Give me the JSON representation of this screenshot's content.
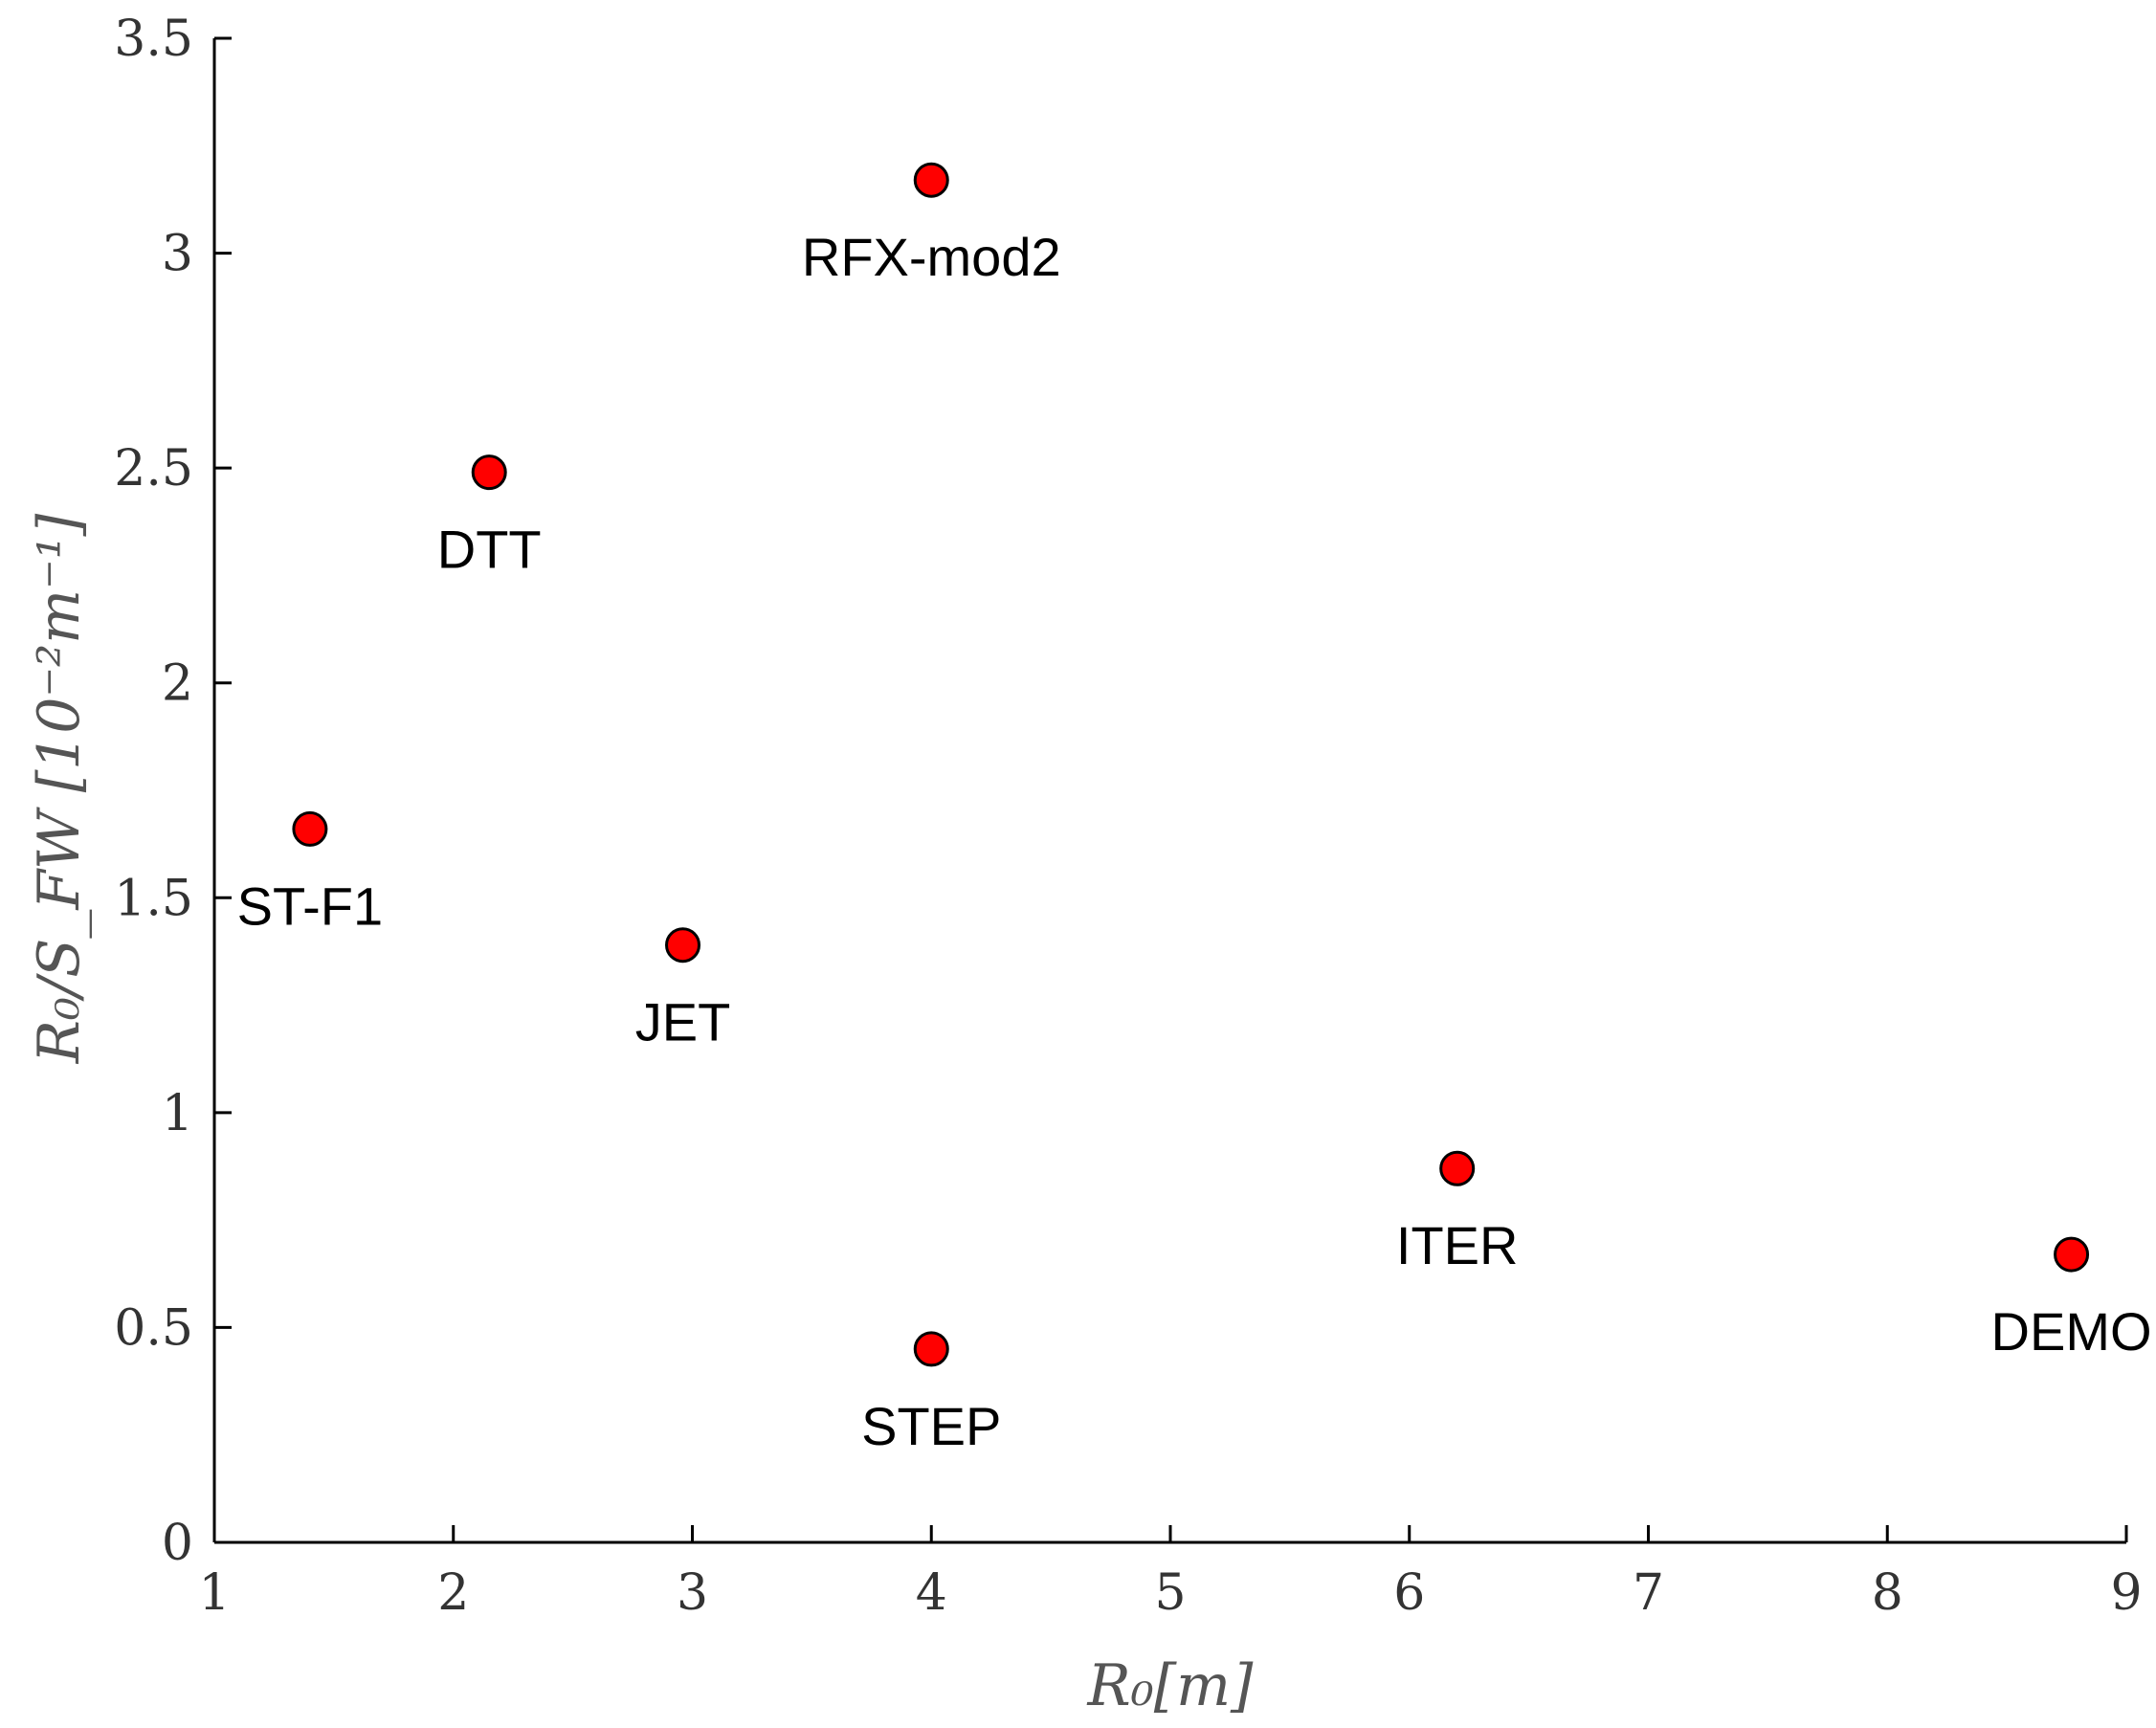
{
  "chart_data": {
    "type": "scatter",
    "title": "",
    "xlabel": "R₀[m]",
    "ylabel": "R₀/S_FW [10⁻²m⁻¹]",
    "xlim": [
      1,
      9
    ],
    "ylim": [
      0,
      3.5
    ],
    "xticks": [
      "1",
      "2",
      "3",
      "4",
      "5",
      "6",
      "7",
      "8",
      "9"
    ],
    "yticks": [
      "0",
      "0.5",
      "1",
      "1.5",
      "2",
      "2.5",
      "3",
      "3.5"
    ],
    "grid": false,
    "marker_color": "#ff0000",
    "points": [
      {
        "label": "ST-F1",
        "x": 1.4,
        "y": 1.66
      },
      {
        "label": "DTT",
        "x": 2.15,
        "y": 2.49
      },
      {
        "label": "JET",
        "x": 2.96,
        "y": 1.39
      },
      {
        "label": "RFX-mod2",
        "x": 4.0,
        "y": 3.17
      },
      {
        "label": "STEP",
        "x": 4.0,
        "y": 0.45
      },
      {
        "label": "ITER",
        "x": 6.2,
        "y": 0.87
      },
      {
        "label": "DEMO",
        "x": 8.77,
        "y": 0.67
      }
    ]
  }
}
